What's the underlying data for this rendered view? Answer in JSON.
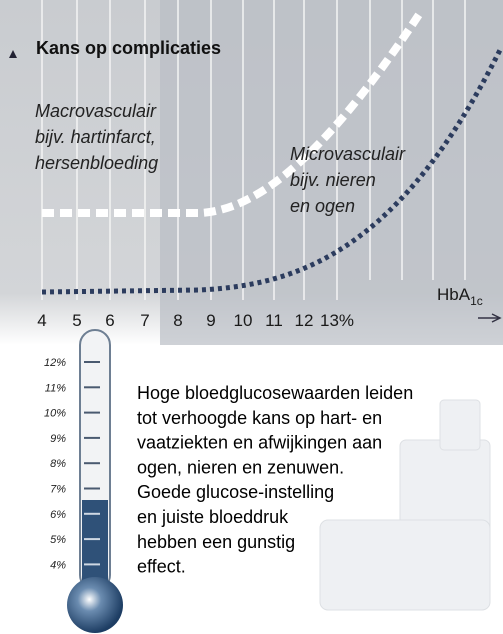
{
  "title": "Kans op complicaties",
  "macrovascular": [
    "Macrovasculair",
    "bijv. hartinfarct,",
    "hersenbloeding"
  ],
  "microvascular": [
    "Microvasculair",
    "bijv. nieren",
    "en ogen"
  ],
  "x_axis": {
    "label": "HbA",
    "label_subscript": "1c",
    "ticks": [
      "4",
      "5",
      "6",
      "7",
      "8",
      "9",
      "10",
      "11",
      "12",
      "13%"
    ]
  },
  "thermometer": {
    "labels": [
      "12%",
      "11%",
      "10%",
      "9%",
      "8%",
      "7%",
      "6%",
      "5%",
      "4%"
    ]
  },
  "text": [
    "Hoge bloedglucosewaarden leiden",
    "tot verhoogde kans op hart- en",
    "vaatziekten en afwijkingen aan",
    "ogen, nieren en zenuwen.",
    "Goede glucose-instelling",
    "en juiste bloeddruk",
    "hebben een gunstig",
    "effect."
  ]
}
